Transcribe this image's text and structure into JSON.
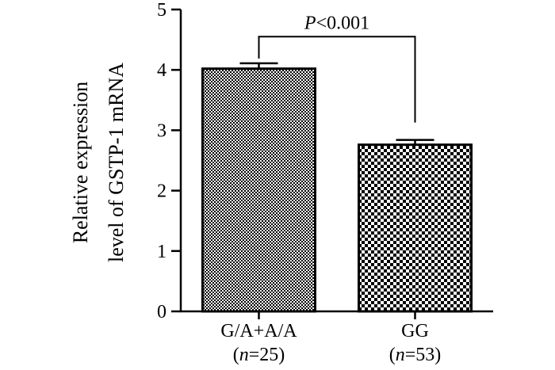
{
  "chart_data": {
    "type": "bar",
    "categories": [
      "G/A+A/A",
      "GG"
    ],
    "category_sublabels": [
      {
        "open": "(",
        "italic": "n",
        "rest": "=25)"
      },
      {
        "open": "(",
        "italic": "n",
        "rest": "=53)"
      }
    ],
    "values": [
      4.02,
      2.76
    ],
    "errors": [
      0.09,
      0.08
    ],
    "ylabel_lines": [
      "Relative expression",
      "level of GSTP-1 mRNA"
    ],
    "xlabel": "",
    "title": "",
    "ylim": [
      0,
      5
    ],
    "yticks": [
      0,
      1,
      2,
      3,
      4,
      5
    ],
    "grid": false,
    "significance": {
      "between": [
        0,
        1
      ],
      "label_italic": "P",
      "label_rest": "<0.001",
      "level": 4.55
    },
    "bar_patterns": [
      "fine-checker",
      "coarse-checker"
    ],
    "colors": {
      "bar_edge": "#000000",
      "pattern_dark": "#000000",
      "pattern_light": "#ffffff"
    }
  }
}
